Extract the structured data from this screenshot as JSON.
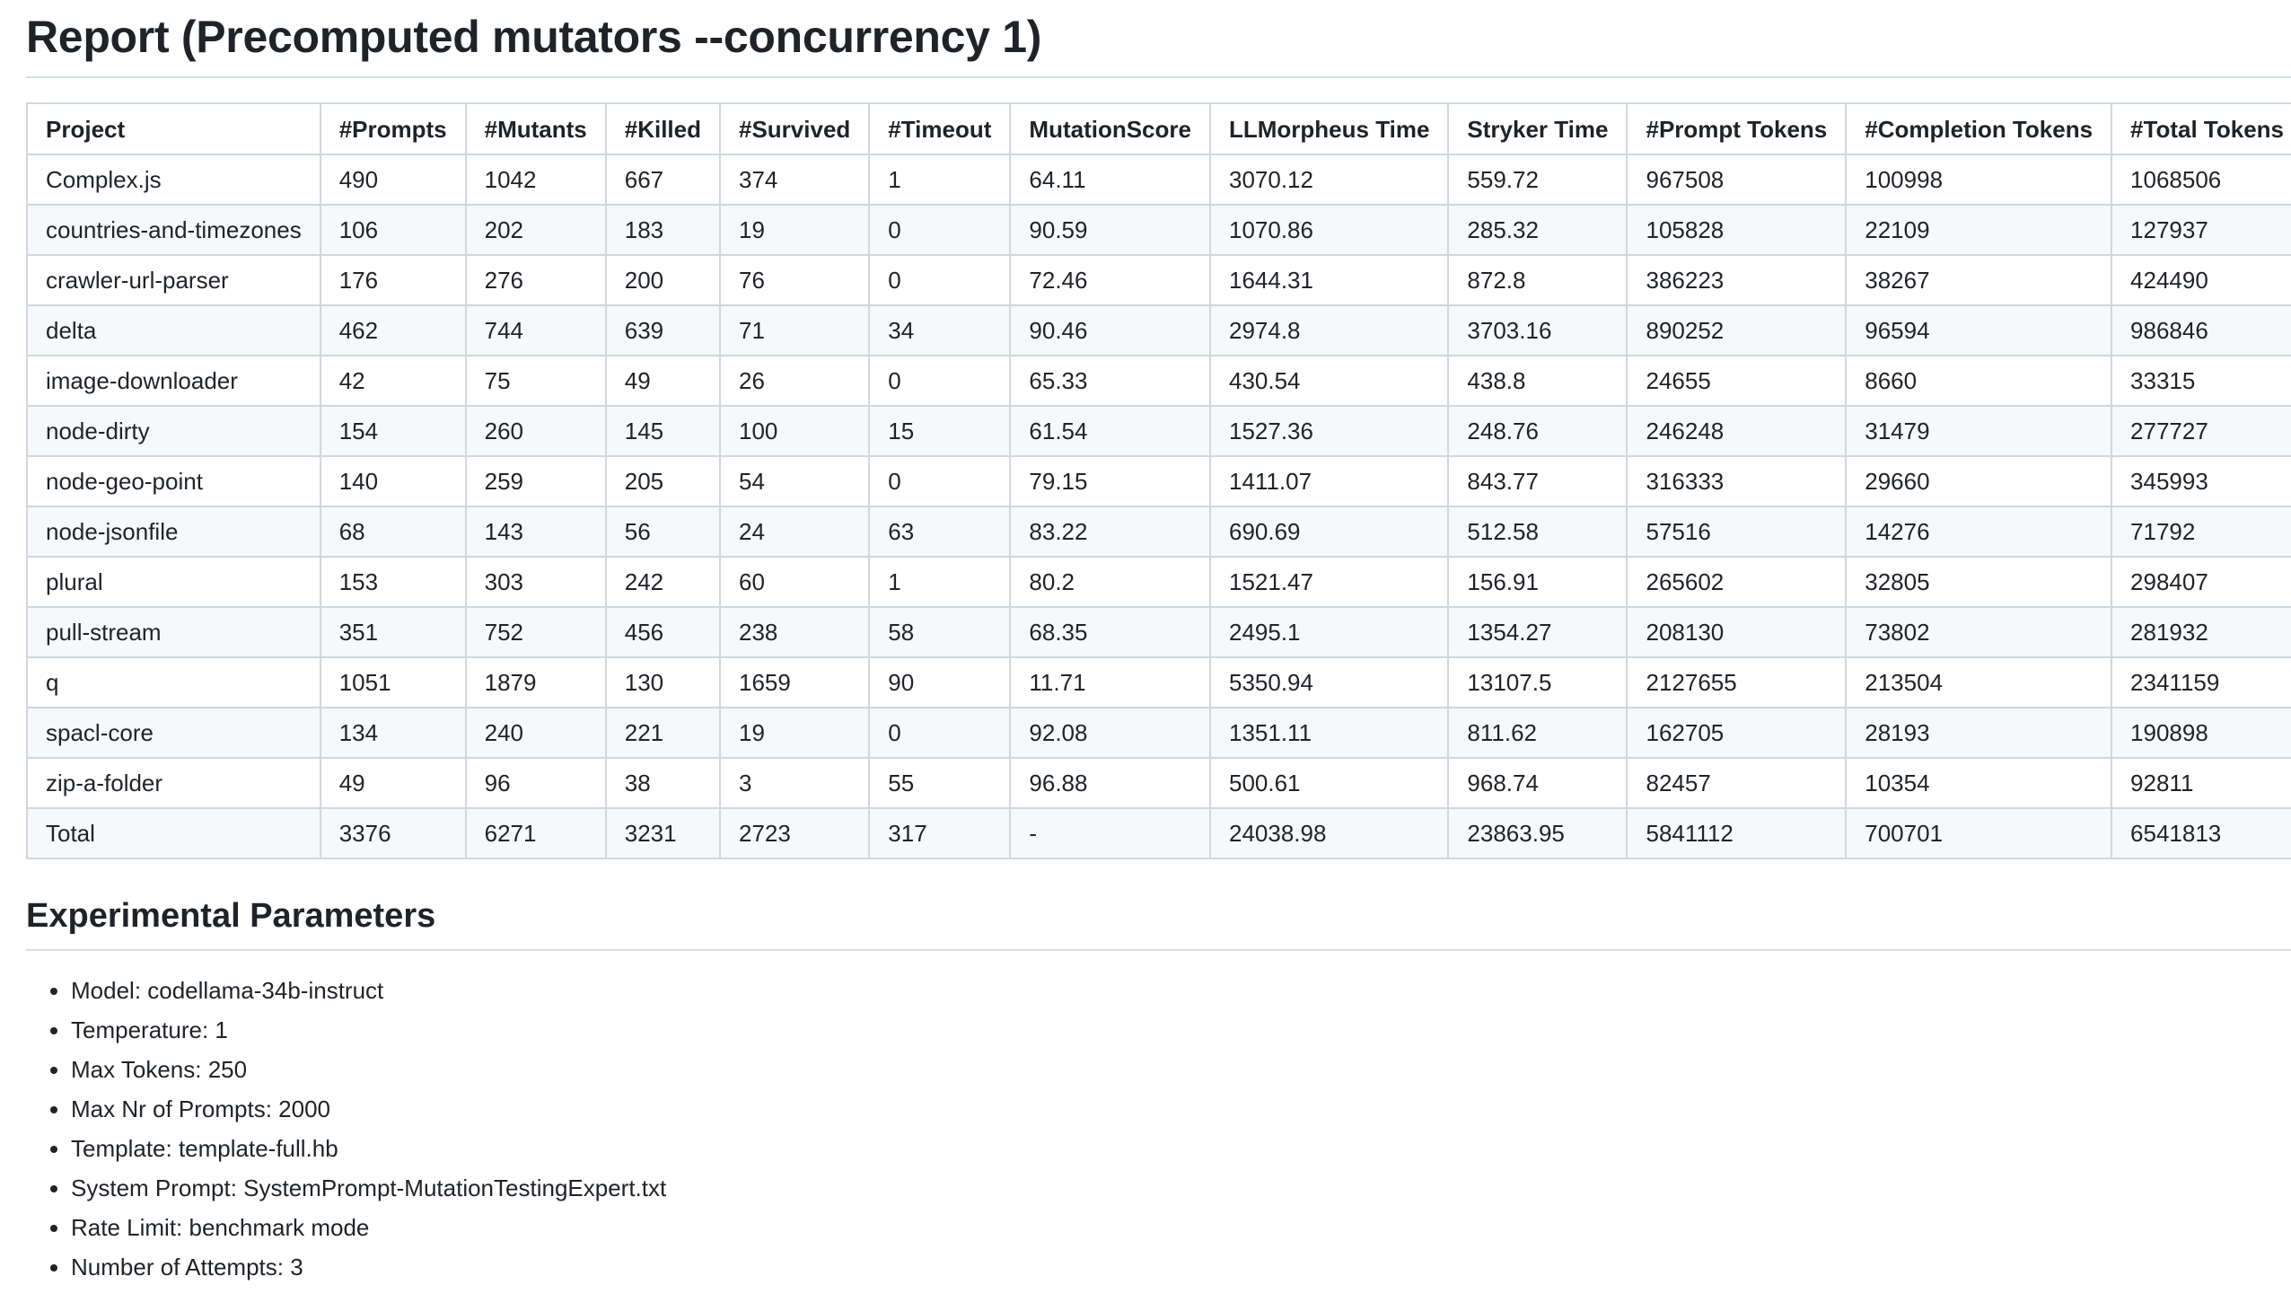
{
  "report": {
    "title": "Report (Precomputed mutators --concurrency 1)"
  },
  "table": {
    "headers": [
      "Project",
      "#Prompts",
      "#Mutants",
      "#Killed",
      "#Survived",
      "#Timeout",
      "MutationScore",
      "LLMorpheus Time",
      "Stryker Time",
      "#Prompt Tokens",
      "#Completion Tokens",
      "#Total Tokens"
    ],
    "rows": [
      [
        "Complex.js",
        "490",
        "1042",
        "667",
        "374",
        "1",
        "64.11",
        "3070.12",
        "559.72",
        "967508",
        "100998",
        "1068506"
      ],
      [
        "countries-and-timezones",
        "106",
        "202",
        "183",
        "19",
        "0",
        "90.59",
        "1070.86",
        "285.32",
        "105828",
        "22109",
        "127937"
      ],
      [
        "crawler-url-parser",
        "176",
        "276",
        "200",
        "76",
        "0",
        "72.46",
        "1644.31",
        "872.8",
        "386223",
        "38267",
        "424490"
      ],
      [
        "delta",
        "462",
        "744",
        "639",
        "71",
        "34",
        "90.46",
        "2974.8",
        "3703.16",
        "890252",
        "96594",
        "986846"
      ],
      [
        "image-downloader",
        "42",
        "75",
        "49",
        "26",
        "0",
        "65.33",
        "430.54",
        "438.8",
        "24655",
        "8660",
        "33315"
      ],
      [
        "node-dirty",
        "154",
        "260",
        "145",
        "100",
        "15",
        "61.54",
        "1527.36",
        "248.76",
        "246248",
        "31479",
        "277727"
      ],
      [
        "node-geo-point",
        "140",
        "259",
        "205",
        "54",
        "0",
        "79.15",
        "1411.07",
        "843.77",
        "316333",
        "29660",
        "345993"
      ],
      [
        "node-jsonfile",
        "68",
        "143",
        "56",
        "24",
        "63",
        "83.22",
        "690.69",
        "512.58",
        "57516",
        "14276",
        "71792"
      ],
      [
        "plural",
        "153",
        "303",
        "242",
        "60",
        "1",
        "80.2",
        "1521.47",
        "156.91",
        "265602",
        "32805",
        "298407"
      ],
      [
        "pull-stream",
        "351",
        "752",
        "456",
        "238",
        "58",
        "68.35",
        "2495.1",
        "1354.27",
        "208130",
        "73802",
        "281932"
      ],
      [
        "q",
        "1051",
        "1879",
        "130",
        "1659",
        "90",
        "11.71",
        "5350.94",
        "13107.5",
        "2127655",
        "213504",
        "2341159"
      ],
      [
        "spacl-core",
        "134",
        "240",
        "221",
        "19",
        "0",
        "92.08",
        "1351.11",
        "811.62",
        "162705",
        "28193",
        "190898"
      ],
      [
        "zip-a-folder",
        "49",
        "96",
        "38",
        "3",
        "55",
        "96.88",
        "500.61",
        "968.74",
        "82457",
        "10354",
        "92811"
      ],
      [
        "Total",
        "3376",
        "6271",
        "3231",
        "2723",
        "317",
        "-",
        "24038.98",
        "23863.95",
        "5841112",
        "700701",
        "6541813"
      ]
    ]
  },
  "parameters": {
    "heading": "Experimental Parameters",
    "items": [
      "Model: codellama-34b-instruct",
      "Temperature: 1",
      "Max Tokens: 250",
      "Max Nr of Prompts: 2000",
      "Template: template-full.hb",
      "System Prompt: SystemPrompt-MutationTestingExpert.txt",
      "Rate Limit: benchmark mode",
      "Number of Attempts: 3"
    ]
  }
}
